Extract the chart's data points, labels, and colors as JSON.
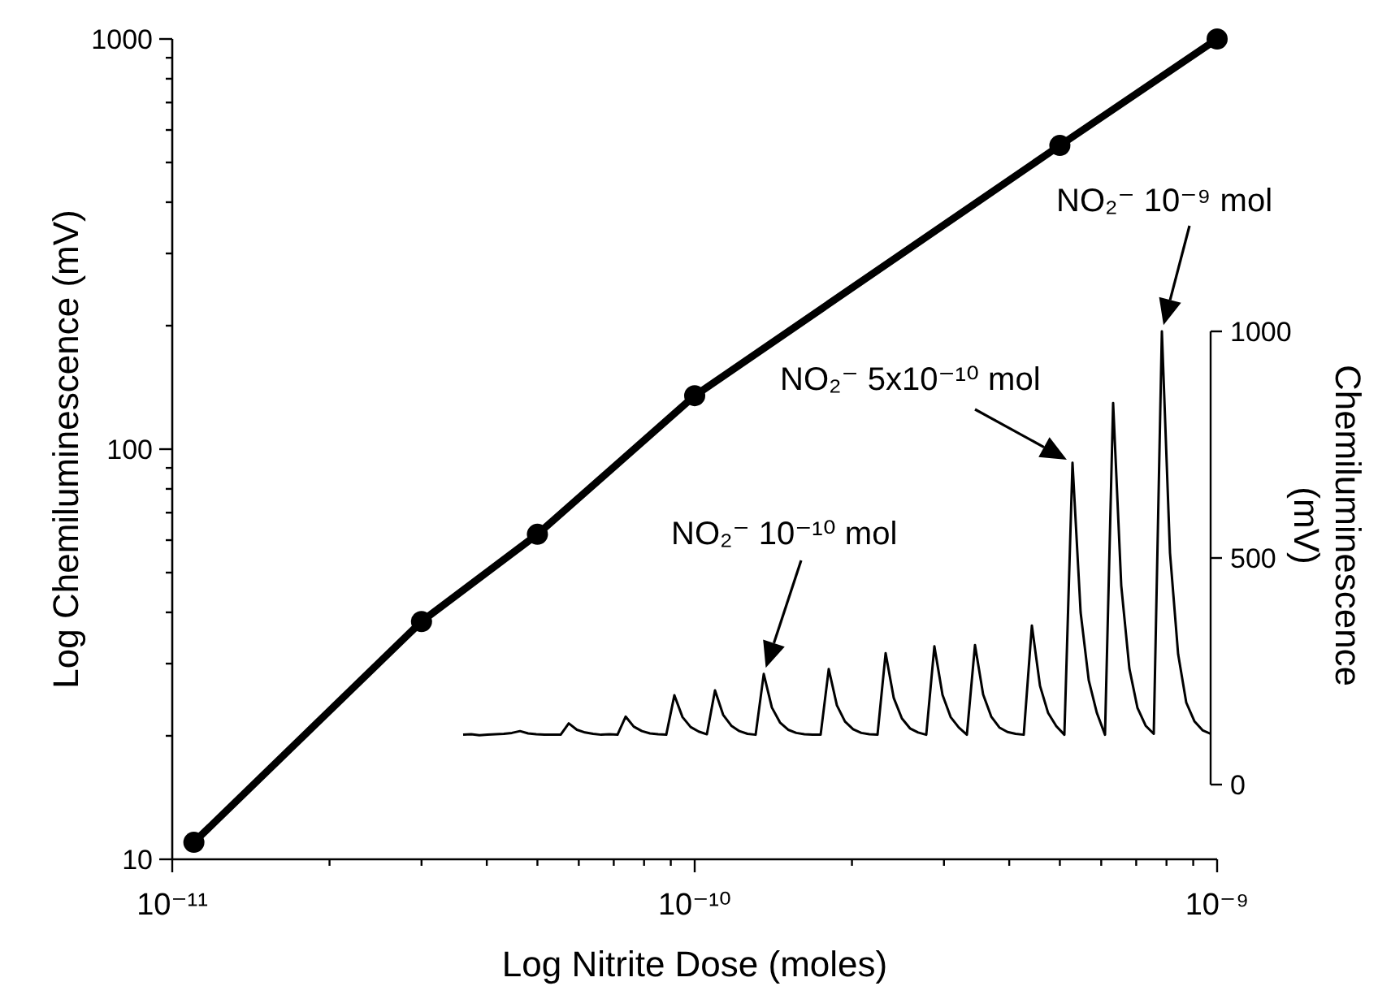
{
  "chart_data": [
    {
      "type": "line",
      "xlabel": "Log Nitrite Dose (moles)",
      "ylabel": "Log Chemiluminescence (mV)",
      "log": "xy",
      "color": "#000000",
      "marker": "circle",
      "x": [
        1.1e-11,
        3e-11,
        5e-11,
        1e-10,
        5e-10,
        1e-09
      ],
      "values": [
        11,
        38,
        62,
        135,
        550,
        1000
      ],
      "xlim": [
        1e-11,
        1e-09
      ],
      "ylim": [
        10,
        1000
      ],
      "xticks": [
        {
          "value": 1e-11,
          "label": "10⁻¹¹"
        },
        {
          "value": 2e-11,
          "label": null
        },
        {
          "value": 3e-11,
          "label": null
        },
        {
          "value": 4e-11,
          "label": null
        },
        {
          "value": 5e-11,
          "label": null
        },
        {
          "value": 6e-11,
          "label": null
        },
        {
          "value": 7e-11,
          "label": null
        },
        {
          "value": 8e-11,
          "label": null
        },
        {
          "value": 9e-11,
          "label": null
        },
        {
          "value": 1e-10,
          "label": "10⁻¹⁰"
        },
        {
          "value": 2e-10,
          "label": null
        },
        {
          "value": 3e-10,
          "label": null
        },
        {
          "value": 4e-10,
          "label": null
        },
        {
          "value": 5e-10,
          "label": null
        },
        {
          "value": 6e-10,
          "label": null
        },
        {
          "value": 7e-10,
          "label": null
        },
        {
          "value": 8e-10,
          "label": null
        },
        {
          "value": 9e-10,
          "label": null
        },
        {
          "value": 1e-09,
          "label": "10⁻⁹"
        }
      ],
      "yticks": [
        10,
        {
          "value": 20,
          "label": null
        },
        {
          "value": 30,
          "label": null
        },
        {
          "value": 40,
          "label": null
        },
        {
          "value": 50,
          "label": null
        },
        {
          "value": 60,
          "label": null
        },
        {
          "value": 70,
          "label": null
        },
        {
          "value": 80,
          "label": null
        },
        {
          "value": 90,
          "label": null
        },
        100,
        {
          "value": 200,
          "label": null
        },
        {
          "value": 300,
          "label": null
        },
        {
          "value": 400,
          "label": null
        },
        {
          "value": 500,
          "label": null
        },
        {
          "value": 600,
          "label": null
        },
        {
          "value": 700,
          "label": null
        },
        {
          "value": 800,
          "label": null
        },
        {
          "value": 900,
          "label": null
        },
        1000
      ]
    },
    {
      "type": "line",
      "ylabel": "Chemiluminescence (mV)",
      "color": "#000000",
      "tick_labels": "y",
      "categories": [
        null,
        null,
        null,
        null,
        null,
        null,
        null,
        null,
        null,
        null,
        null,
        null,
        null,
        null,
        null,
        null,
        null,
        null,
        null,
        null,
        null,
        null,
        null,
        null,
        null,
        null,
        null,
        null,
        null,
        null,
        null,
        null,
        null,
        null,
        null,
        null,
        null,
        null,
        null,
        null,
        null,
        null,
        null,
        null,
        null,
        null,
        null,
        null,
        null,
        null,
        null,
        null,
        null,
        null,
        null,
        null,
        null,
        null,
        null,
        null,
        null,
        null,
        null,
        null,
        null,
        null,
        null,
        null,
        null,
        null,
        null,
        null,
        null,
        null,
        null,
        null,
        null,
        null,
        null,
        null,
        null,
        null,
        null,
        null,
        null,
        null,
        null,
        null,
        null,
        null,
        null,
        null,
        null
      ],
      "values": [
        110,
        111,
        109,
        110,
        111,
        112,
        114,
        118,
        113,
        111,
        110,
        110,
        110,
        135,
        121,
        115,
        112,
        110,
        111,
        110,
        150,
        128,
        118,
        113,
        111,
        110,
        197,
        149,
        127,
        117,
        111,
        208,
        154,
        130,
        118,
        112,
        110,
        244,
        170,
        137,
        121,
        114,
        111,
        110,
        110,
        255,
        175,
        139,
        122,
        114,
        111,
        110,
        290,
        191,
        146,
        124,
        115,
        110,
        305,
        198,
        149,
        126,
        110,
        308,
        199,
        150,
        126,
        116,
        112,
        110,
        351,
        218,
        158,
        129,
        110,
        710,
        380,
        230,
        158,
        110,
        842,
        439,
        256,
        169,
        130,
        112,
        1000,
        511,
        288,
        181,
        140,
        120,
        112
      ],
      "ylim": [
        0,
        1000
      ],
      "yticks": [
        0,
        500,
        1000
      ],
      "annotations": [
        "NO₂⁻  10⁻⁹ mol",
        "NO₂⁻  5x10⁻¹⁰ mol",
        "NO₂⁻  10⁻¹⁰ mol"
      ]
    }
  ]
}
